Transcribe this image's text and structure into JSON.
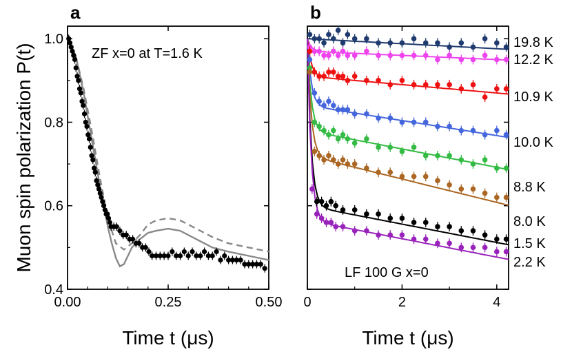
{
  "chart_data": [
    {
      "panel_label": "a",
      "type": "scatter",
      "annotation": "ZF x=0 at T=1.6 K",
      "xlabel": "Time t (μs)",
      "ylabel": "Muon spin polarization P(t)",
      "xlim": [
        0,
        0.5
      ],
      "ylim": [
        0.4,
        1.03
      ],
      "xticks": [
        0,
        0.25,
        0.5
      ],
      "xtick_labels": [
        "0.00",
        "0.25",
        "0.50"
      ],
      "yticks": [
        0.4,
        0.6,
        0.8,
        1.0
      ],
      "ytick_labels": [
        "0.4",
        "0.6",
        "0.8",
        "1.0"
      ],
      "grid": false,
      "series": [
        {
          "kind": "points",
          "color": "#000000",
          "x": [
            0.003,
            0.006,
            0.009,
            0.012,
            0.015,
            0.018,
            0.021,
            0.024,
            0.027,
            0.03,
            0.033,
            0.036,
            0.039,
            0.042,
            0.045,
            0.048,
            0.051,
            0.054,
            0.057,
            0.06,
            0.063,
            0.066,
            0.069,
            0.072,
            0.075,
            0.078,
            0.081,
            0.084,
            0.087,
            0.09,
            0.093,
            0.096,
            0.099,
            0.102,
            0.105,
            0.108,
            0.115,
            0.122,
            0.13,
            0.138,
            0.146,
            0.154,
            0.162,
            0.17,
            0.178,
            0.186,
            0.194,
            0.202,
            0.21,
            0.22,
            0.23,
            0.24,
            0.25,
            0.26,
            0.27,
            0.28,
            0.29,
            0.3,
            0.31,
            0.32,
            0.33,
            0.34,
            0.35,
            0.36,
            0.37,
            0.38,
            0.39,
            0.4,
            0.41,
            0.42,
            0.43,
            0.44,
            0.45,
            0.46,
            0.47,
            0.48,
            0.49
          ],
          "y": [
            1.0,
            0.99,
            0.98,
            0.97,
            0.96,
            0.95,
            0.93,
            0.91,
            0.9,
            0.88,
            0.87,
            0.85,
            0.84,
            0.82,
            0.8,
            0.79,
            0.77,
            0.76,
            0.74,
            0.72,
            0.71,
            0.69,
            0.68,
            0.66,
            0.65,
            0.64,
            0.63,
            0.62,
            0.61,
            0.6,
            0.59,
            0.58,
            0.58,
            0.57,
            0.56,
            0.55,
            0.55,
            0.55,
            0.54,
            0.53,
            0.53,
            0.52,
            0.52,
            0.51,
            0.51,
            0.5,
            0.5,
            0.49,
            0.48,
            0.48,
            0.48,
            0.48,
            0.48,
            0.49,
            0.48,
            0.48,
            0.49,
            0.48,
            0.49,
            0.48,
            0.48,
            0.49,
            0.48,
            0.48,
            0.49,
            0.47,
            0.48,
            0.47,
            0.47,
            0.47,
            0.47,
            0.46,
            0.46,
            0.46,
            0.46,
            0.46,
            0.45
          ],
          "marker": "circle",
          "error_bars": true
        },
        {
          "kind": "line",
          "style": "solid",
          "color": "#888888",
          "x": [
            0,
            0.02,
            0.04,
            0.06,
            0.08,
            0.1,
            0.11,
            0.12,
            0.13,
            0.14,
            0.15,
            0.16,
            0.18,
            0.2,
            0.22,
            0.25,
            0.28,
            0.3,
            0.33,
            0.36,
            0.4,
            0.45,
            0.5
          ],
          "y": [
            1.0,
            0.96,
            0.87,
            0.76,
            0.65,
            0.55,
            0.51,
            0.475,
            0.455,
            0.46,
            0.48,
            0.5,
            0.52,
            0.535,
            0.54,
            0.545,
            0.54,
            0.53,
            0.515,
            0.5,
            0.49,
            0.48,
            0.47
          ]
        },
        {
          "kind": "line",
          "style": "dashed",
          "color": "#888888",
          "x": [
            0,
            0.02,
            0.04,
            0.06,
            0.08,
            0.1,
            0.12,
            0.14,
            0.16,
            0.18,
            0.2,
            0.22,
            0.25,
            0.28,
            0.3,
            0.33,
            0.36,
            0.4,
            0.45,
            0.5
          ],
          "y": [
            1.0,
            0.96,
            0.88,
            0.78,
            0.67,
            0.57,
            0.51,
            0.495,
            0.51,
            0.53,
            0.555,
            0.565,
            0.57,
            0.565,
            0.555,
            0.54,
            0.525,
            0.51,
            0.5,
            0.49
          ]
        }
      ]
    },
    {
      "panel_label": "b",
      "type": "scatter",
      "annotation": "LF 100 G x=0",
      "xlabel": "Time t (μs)",
      "xlim": [
        0,
        4.25
      ],
      "ylim": [
        0.4,
        1.03
      ],
      "xticks": [
        0,
        2,
        4
      ],
      "xtick_labels": [
        "0",
        "2",
        "4"
      ],
      "grid": false,
      "series": [
        {
          "name": "19.8 K",
          "color": "#1f3a6e",
          "base": 1.0,
          "drop": 0.0,
          "slope": 0.006,
          "x": [
            0.05,
            0.15,
            0.25,
            0.35,
            0.45,
            0.55,
            0.65,
            0.75,
            0.85,
            1.0,
            1.25,
            1.5,
            1.75,
            2.0,
            2.25,
            2.5,
            2.75,
            3.0,
            3.25,
            3.5,
            3.75,
            4.0,
            4.2
          ],
          "y": [
            1.01,
            1.0,
            1.0,
            0.99,
            1.01,
            1.0,
            1.02,
            0.99,
            1.01,
            1.0,
            1.0,
            0.99,
            0.99,
            0.99,
            1.0,
            0.99,
            0.99,
            0.98,
            0.99,
            0.98,
            1.0,
            0.99,
            0.98
          ]
        },
        {
          "name": "12.2 K",
          "color": "#ee44ee",
          "base": 0.97,
          "drop": 0.03,
          "slope": 0.005,
          "x": [
            0.05,
            0.15,
            0.25,
            0.35,
            0.45,
            0.55,
            0.65,
            0.75,
            0.85,
            1.0,
            1.25,
            1.5,
            1.75,
            2.0,
            2.25,
            2.5,
            2.75,
            3.0,
            3.25,
            3.5,
            3.75,
            4.0,
            4.2
          ],
          "y": [
            0.98,
            0.97,
            0.97,
            0.96,
            0.96,
            0.97,
            0.96,
            0.97,
            0.96,
            0.96,
            0.97,
            0.96,
            0.96,
            0.96,
            0.96,
            0.96,
            0.95,
            0.96,
            0.95,
            0.95,
            0.96,
            0.95,
            0.95
          ]
        },
        {
          "name": "10.9 K",
          "color": "#ee1111",
          "base": 0.91,
          "drop": 0.09,
          "slope": 0.01,
          "x": [
            0.05,
            0.15,
            0.25,
            0.35,
            0.45,
            0.55,
            0.65,
            0.75,
            0.85,
            1.0,
            1.25,
            1.5,
            1.75,
            2.0,
            2.25,
            2.5,
            2.75,
            3.0,
            3.25,
            3.5,
            3.75,
            4.0,
            4.2
          ],
          "y": [
            0.97,
            0.92,
            0.91,
            0.91,
            0.92,
            0.92,
            0.91,
            0.91,
            0.9,
            0.91,
            0.9,
            0.9,
            0.89,
            0.9,
            0.89,
            0.89,
            0.89,
            0.89,
            0.88,
            0.89,
            0.86,
            0.88,
            0.88
          ]
        },
        {
          "name": "10.0 K",
          "color": "#4466dd",
          "base": 0.84,
          "drop": 0.16,
          "slope": 0.018,
          "x": [
            0.05,
            0.15,
            0.25,
            0.35,
            0.45,
            0.55,
            0.65,
            0.75,
            0.85,
            1.0,
            1.25,
            1.5,
            1.75,
            2.0,
            2.25,
            2.5,
            2.75,
            3.0,
            3.25,
            3.5,
            3.75,
            4.0,
            4.2
          ],
          "y": [
            0.95,
            0.87,
            0.85,
            0.84,
            0.85,
            0.84,
            0.83,
            0.83,
            0.83,
            0.82,
            0.82,
            0.81,
            0.81,
            0.8,
            0.8,
            0.8,
            0.79,
            0.79,
            0.78,
            0.78,
            0.77,
            0.78,
            0.77
          ]
        },
        {
          "name": "8.8 K",
          "color": "#33bb44",
          "base": 0.78,
          "drop": 0.22,
          "slope": 0.022,
          "x": [
            0.05,
            0.15,
            0.25,
            0.35,
            0.45,
            0.55,
            0.65,
            0.75,
            0.85,
            1.0,
            1.25,
            1.5,
            1.75,
            2.0,
            2.25,
            2.5,
            2.75,
            3.0,
            3.25,
            3.5,
            3.75,
            4.0,
            4.2
          ],
          "y": [
            0.93,
            0.8,
            0.79,
            0.78,
            0.77,
            0.78,
            0.76,
            0.77,
            0.76,
            0.75,
            0.76,
            0.74,
            0.74,
            0.73,
            0.74,
            0.72,
            0.72,
            0.72,
            0.71,
            0.7,
            0.71,
            0.69,
            0.69
          ]
        },
        {
          "name": "8.0 K",
          "color": "#aa6622",
          "base": 0.72,
          "drop": 0.28,
          "slope": 0.028,
          "x": [
            0.05,
            0.15,
            0.25,
            0.35,
            0.45,
            0.55,
            0.65,
            0.75,
            0.85,
            1.0,
            1.25,
            1.5,
            1.75,
            2.0,
            2.25,
            2.5,
            2.75,
            3.0,
            3.25,
            3.5,
            3.75,
            4.0,
            4.2
          ],
          "y": [
            0.92,
            0.73,
            0.72,
            0.71,
            0.72,
            0.71,
            0.7,
            0.71,
            0.7,
            0.7,
            0.69,
            0.68,
            0.68,
            0.67,
            0.67,
            0.67,
            0.66,
            0.65,
            0.64,
            0.64,
            0.63,
            0.62,
            0.62
          ]
        },
        {
          "name": "1.5 K",
          "color": "#000000",
          "base": 0.6,
          "drop": 0.4,
          "slope": 0.022,
          "x": [
            0.2,
            0.3,
            0.4,
            0.5,
            0.6,
            0.75,
            1.0,
            1.25,
            1.5,
            1.75,
            2.0,
            2.25,
            2.5,
            2.75,
            3.0,
            3.25,
            3.5,
            3.75,
            4.0,
            4.2
          ],
          "y": [
            0.61,
            0.61,
            0.6,
            0.61,
            0.6,
            0.59,
            0.59,
            0.58,
            0.58,
            0.57,
            0.57,
            0.56,
            0.56,
            0.55,
            0.55,
            0.54,
            0.54,
            0.53,
            0.52,
            0.52
          ]
        },
        {
          "name": "2.2 K",
          "color": "#9922bb",
          "base": 0.565,
          "drop": 0.435,
          "slope": 0.022,
          "x": [
            0.1,
            0.2,
            0.3,
            0.4,
            0.5,
            0.6,
            0.75,
            1.0,
            1.25,
            1.5,
            1.75,
            2.0,
            2.25,
            2.5,
            2.75,
            3.0,
            3.25,
            3.5,
            3.75,
            4.0,
            4.2
          ],
          "y": [
            0.64,
            0.58,
            0.57,
            0.56,
            0.56,
            0.55,
            0.55,
            0.54,
            0.54,
            0.53,
            0.53,
            0.53,
            0.52,
            0.52,
            0.51,
            0.51,
            0.5,
            0.5,
            0.5,
            0.49,
            0.49
          ]
        }
      ]
    }
  ]
}
